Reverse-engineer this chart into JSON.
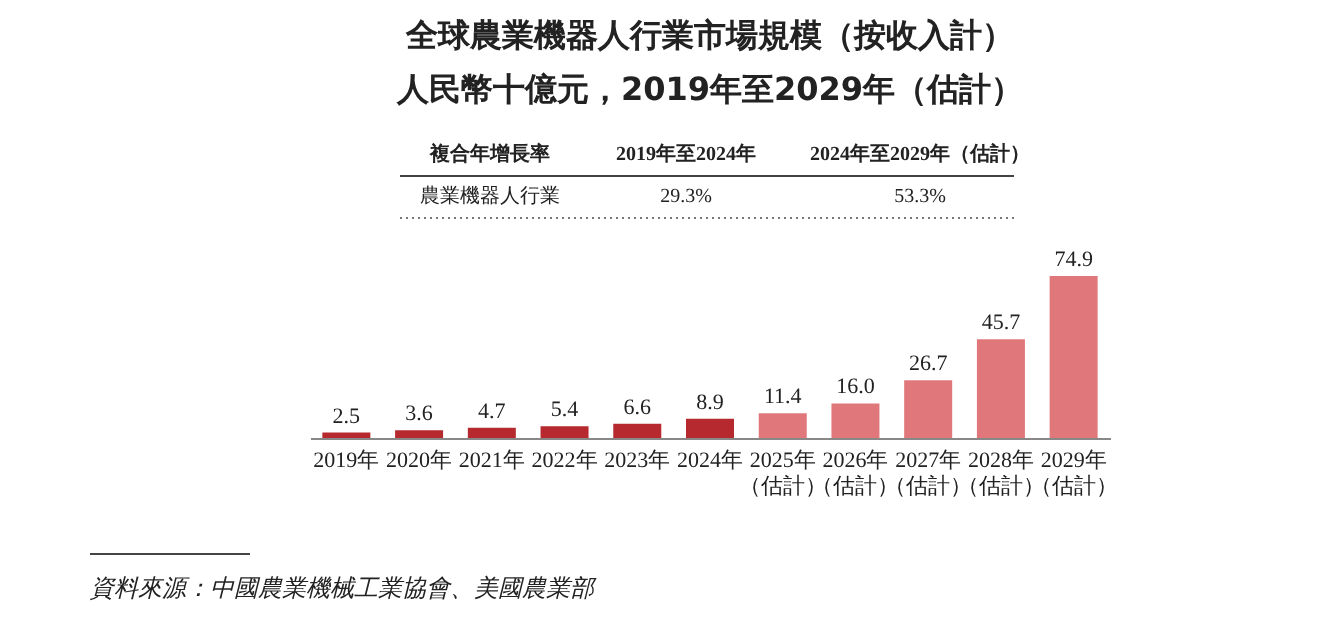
{
  "chart_data": {
    "type": "bar",
    "title": "全球農業機器人行業市場規模（按收入計）",
    "subtitle": "人民幣十億元，2019年至2029年（估計）",
    "categories": [
      "2019年",
      "2020年",
      "2021年",
      "2022年",
      "2023年",
      "2024年",
      "2025年（估計）",
      "2026年（估計）",
      "2027年（估計）",
      "2028年（估計）",
      "2029年（估計）"
    ],
    "values": [
      2.5,
      3.6,
      4.7,
      5.4,
      6.6,
      8.9,
      11.4,
      16.0,
      26.7,
      45.7,
      74.9
    ],
    "value_labels": [
      "2.5",
      "3.6",
      "4.7",
      "5.4",
      "6.6",
      "8.9",
      "11.4",
      "16.0",
      "26.7",
      "45.7",
      "74.9"
    ],
    "colors": [
      "#b5292f",
      "#b5292f",
      "#b5292f",
      "#b5292f",
      "#b5292f",
      "#b5292f",
      "#e0777b",
      "#e0777b",
      "#e0777b",
      "#e0777b",
      "#e0777b"
    ],
    "annotations": [
      "複合年增長率",
      "2019年至2024年",
      "2024年至2029年（估計）",
      "農業機器人行業",
      "29.3%",
      "53.3%",
      "資料來源：中國農業機械工業協會、美國農業部"
    ],
    "legend": false
  }
}
